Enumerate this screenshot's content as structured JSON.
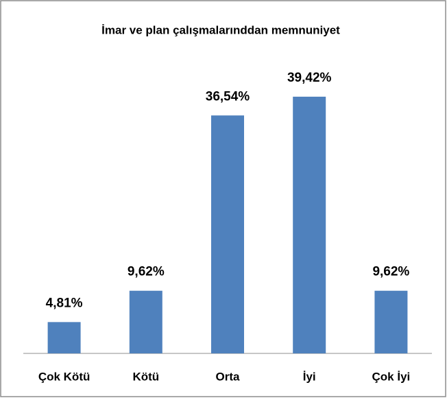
{
  "chart_data": {
    "type": "bar",
    "title": "İmar ve plan çalışmalarınddan  memnuniyet",
    "categories": [
      "Çok Kötü",
      "Kötü",
      "Orta",
      "İyi",
      "Çok İyi"
    ],
    "values": [
      4.81,
      9.62,
      36.54,
      39.42,
      9.62
    ],
    "value_labels": [
      "4,81%",
      "9,62%",
      "36,54%",
      "39,42%",
      "9,62%"
    ],
    "color": "#4f81bd"
  }
}
